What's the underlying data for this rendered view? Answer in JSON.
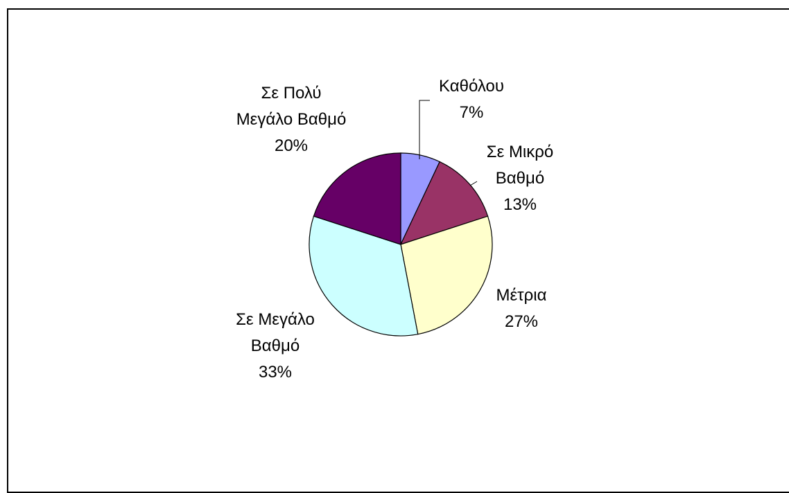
{
  "chart_data": {
    "type": "pie",
    "categories": [
      "Καθόλου",
      "Σε Μικρό\nΒαθμό",
      "Μέτρια",
      "Σε Μεγάλο\nΒαθμό",
      "Σε Πολύ\nΜεγάλο Βαθμό"
    ],
    "values": [
      7,
      13,
      27,
      33,
      20
    ],
    "value_labels": [
      "7%",
      "13%",
      "27%",
      "33%",
      "20%"
    ],
    "colors": [
      "#9999ff",
      "#993366",
      "#ffffcc",
      "#ccffff",
      "#660066"
    ]
  }
}
